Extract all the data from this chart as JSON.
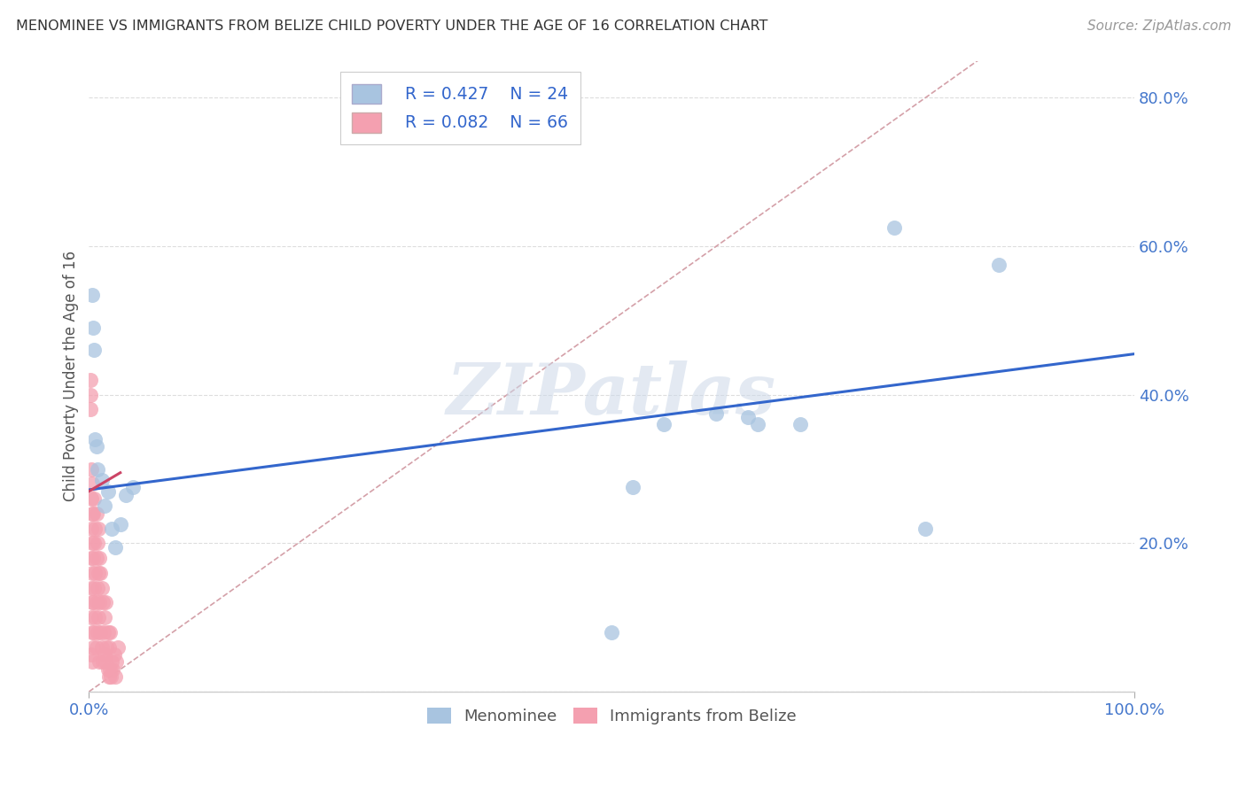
{
  "title": "MENOMINEE VS IMMIGRANTS FROM BELIZE CHILD POVERTY UNDER THE AGE OF 16 CORRELATION CHART",
  "source": "Source: ZipAtlas.com",
  "ylabel": "Child Poverty Under the Age of 16",
  "xlim": [
    0,
    1.0
  ],
  "ylim": [
    0,
    0.85
  ],
  "ytick_positions": [
    0.0,
    0.2,
    0.4,
    0.6,
    0.8
  ],
  "yticklabels_right": [
    "",
    "20.0%",
    "40.0%",
    "60.0%",
    "80.0%"
  ],
  "legend_r1": "R = 0.427",
  "legend_n1": "N = 24",
  "legend_r2": "R = 0.082",
  "legend_n2": "N = 66",
  "menominee_color": "#a8c4e0",
  "belize_color": "#f4a0b0",
  "trendline_menominee_color": "#3366cc",
  "trendline_belize_color": "#cc4466",
  "diagonal_color": "#d4a0a8",
  "watermark": "ZIPatlas",
  "menominee_x": [
    0.003,
    0.004,
    0.005,
    0.006,
    0.007,
    0.008,
    0.012,
    0.015,
    0.018,
    0.022,
    0.025,
    0.03,
    0.035,
    0.042,
    0.5,
    0.52,
    0.55,
    0.6,
    0.63,
    0.64,
    0.68,
    0.77,
    0.8,
    0.87
  ],
  "menominee_y": [
    0.535,
    0.49,
    0.46,
    0.34,
    0.33,
    0.3,
    0.285,
    0.25,
    0.27,
    0.22,
    0.195,
    0.225,
    0.265,
    0.275,
    0.08,
    0.275,
    0.36,
    0.375,
    0.37,
    0.36,
    0.36,
    0.625,
    0.22,
    0.575
  ],
  "belize_x": [
    0.001,
    0.001,
    0.001,
    0.002,
    0.002,
    0.002,
    0.002,
    0.002,
    0.002,
    0.002,
    0.003,
    0.003,
    0.003,
    0.003,
    0.003,
    0.003,
    0.003,
    0.004,
    0.004,
    0.004,
    0.004,
    0.005,
    0.005,
    0.005,
    0.005,
    0.006,
    0.006,
    0.006,
    0.007,
    0.007,
    0.007,
    0.007,
    0.008,
    0.008,
    0.008,
    0.009,
    0.009,
    0.009,
    0.01,
    0.01,
    0.01,
    0.011,
    0.011,
    0.012,
    0.012,
    0.013,
    0.013,
    0.014,
    0.015,
    0.015,
    0.016,
    0.016,
    0.017,
    0.018,
    0.018,
    0.019,
    0.019,
    0.02,
    0.02,
    0.021,
    0.022,
    0.023,
    0.024,
    0.025,
    0.026,
    0.028
  ],
  "belize_y": [
    0.38,
    0.4,
    0.42,
    0.05,
    0.1,
    0.14,
    0.18,
    0.22,
    0.26,
    0.3,
    0.04,
    0.08,
    0.12,
    0.16,
    0.2,
    0.24,
    0.28,
    0.06,
    0.12,
    0.18,
    0.24,
    0.08,
    0.14,
    0.2,
    0.26,
    0.1,
    0.16,
    0.22,
    0.06,
    0.12,
    0.18,
    0.24,
    0.08,
    0.14,
    0.2,
    0.1,
    0.16,
    0.22,
    0.04,
    0.12,
    0.18,
    0.08,
    0.16,
    0.06,
    0.14,
    0.04,
    0.12,
    0.08,
    0.05,
    0.1,
    0.04,
    0.12,
    0.06,
    0.03,
    0.08,
    0.02,
    0.06,
    0.03,
    0.08,
    0.02,
    0.04,
    0.03,
    0.05,
    0.02,
    0.04,
    0.06
  ],
  "trendline_blue_x0": 0.0,
  "trendline_blue_x1": 1.0,
  "trendline_blue_y0": 0.272,
  "trendline_blue_y1": 0.455,
  "trendline_pink_x0": 0.0,
  "trendline_pink_x1": 0.03,
  "trendline_pink_y0": 0.27,
  "trendline_pink_y1": 0.295
}
